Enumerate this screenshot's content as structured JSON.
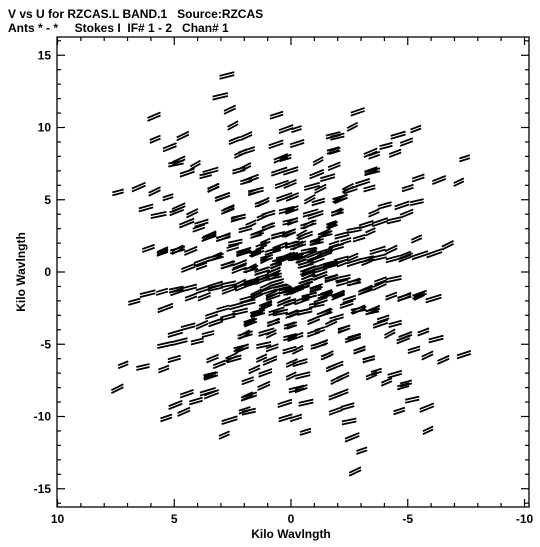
{
  "chart_data": {
    "type": "scatter",
    "title": "V vs U for RZCAS.L BAND.1   Source:RZCAS",
    "subtitle": "Ants * - *     Stokes I  IF# 1 - 2   Chan# 1",
    "xlabel": "Kilo Wavlngth",
    "ylabel": "Kilo Wavlngth",
    "xlim": [
      10,
      -10
    ],
    "ylim": [
      -16,
      16
    ],
    "x_ticks": [
      "10",
      "5",
      "0",
      "-5",
      "-10"
    ],
    "y_ticks": [
      "15",
      "10",
      "5",
      "0",
      "-5",
      "-10",
      "-15"
    ],
    "grid": false,
    "legend": "none",
    "marker_color": "#000000",
    "series": [
      {
        "coverage": "uv-plane, 18 spokes, baselines 1-15.5 kilo-wavelength, conjugate symmetric"
      }
    ]
  }
}
